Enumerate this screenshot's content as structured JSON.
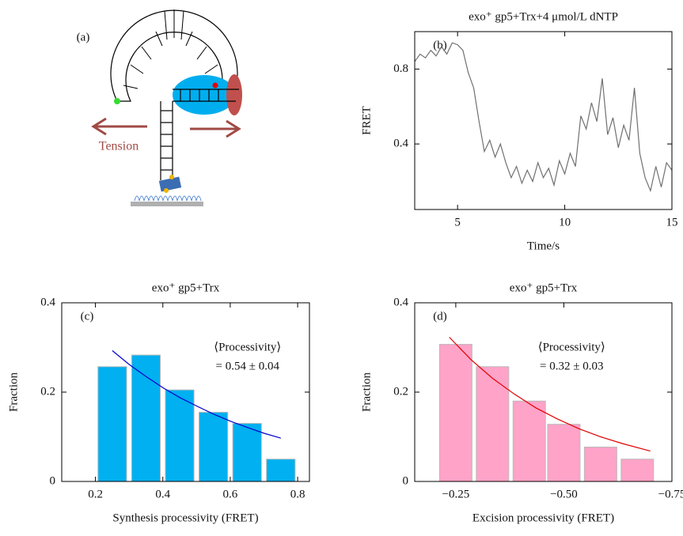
{
  "diagram": {
    "label": "(a)",
    "text": "Tension"
  },
  "chart_data": [
    {
      "type": "line",
      "panel": "(b)",
      "title": "exo⁺ gp5+Trx+4 μmol/L dNTP",
      "x_label": "Time/s",
      "y_label": "FRET",
      "color": "#707070",
      "x": [
        3,
        3.25,
        3.5,
        3.75,
        4,
        4.25,
        4.5,
        4.75,
        5,
        5.25,
        5.5,
        5.75,
        6,
        6.25,
        6.5,
        6.75,
        7,
        7.25,
        7.5,
        7.75,
        8,
        8.25,
        8.5,
        8.75,
        9,
        9.25,
        9.5,
        9.75,
        10,
        10.25,
        10.5,
        10.75,
        11,
        11.25,
        11.5,
        11.75,
        12,
        12.25,
        12.5,
        12.75,
        13,
        13.25,
        13.5,
        13.75,
        14,
        14.25,
        14.5,
        14.75,
        15
      ],
      "values": [
        0.84,
        0.88,
        0.86,
        0.9,
        0.87,
        0.92,
        0.88,
        0.94,
        0.93,
        0.9,
        0.78,
        0.7,
        0.52,
        0.36,
        0.42,
        0.33,
        0.4,
        0.3,
        0.22,
        0.28,
        0.19,
        0.26,
        0.2,
        0.3,
        0.22,
        0.27,
        0.18,
        0.31,
        0.24,
        0.35,
        0.28,
        0.55,
        0.48,
        0.62,
        0.52,
        0.75,
        0.45,
        0.54,
        0.38,
        0.5,
        0.42,
        0.7,
        0.35,
        0.22,
        0.15,
        0.28,
        0.17,
        0.3,
        0.26
      ],
      "xlim": [
        3,
        15
      ],
      "ylim": [
        0.05,
        1.0
      ],
      "xticks": [
        5,
        10,
        15
      ],
      "yticks": [
        0.4,
        0.8
      ]
    },
    {
      "type": "bar",
      "panel": "(c)",
      "title": "exo⁺ gp5+Trx",
      "x_label": "Synthesis processivity (FRET)",
      "y_label": "Fraction",
      "color": "#00b0f0",
      "x": [
        0.25,
        0.35,
        0.45,
        0.55,
        0.65,
        0.75
      ],
      "values": [
        0.257,
        0.283,
        0.205,
        0.155,
        0.13,
        0.05
      ],
      "bar_width": 0.085,
      "fit": {
        "color": "#0000cc",
        "x": [
          0.25,
          0.3,
          0.35,
          0.4,
          0.45,
          0.5,
          0.55,
          0.6,
          0.65,
          0.7,
          0.75
        ],
        "values": [
          0.293,
          0.262,
          0.235,
          0.21,
          0.188,
          0.169,
          0.151,
          0.135,
          0.121,
          0.108,
          0.097
        ]
      },
      "annotation": [
        "⟨Processivity⟩",
        "= 0.54 ± 0.04"
      ],
      "xlim": [
        0.1,
        0.835
      ],
      "ylim": [
        0,
        0.4
      ],
      "xticks": [
        0.2,
        0.4,
        0.6,
        0.8
      ],
      "yticks": [
        0,
        0.2,
        0.4
      ]
    },
    {
      "type": "bar",
      "panel": "(d)",
      "title": "exo⁺ gp5+Trx",
      "x_label": "Excision processivity (FRET)",
      "y_label": "Fraction",
      "color": "#ffa3c8",
      "x": [
        -0.25,
        -0.335,
        -0.42,
        -0.5,
        -0.585,
        -0.67
      ],
      "values": [
        0.307,
        0.257,
        0.18,
        0.128,
        0.077,
        0.05
      ],
      "bar_width": 0.075,
      "fit": {
        "color": "#e00000",
        "x": [
          -0.235,
          -0.285,
          -0.335,
          -0.385,
          -0.435,
          -0.485,
          -0.535,
          -0.585,
          -0.635,
          -0.7
        ],
        "values": [
          0.323,
          0.273,
          0.231,
          0.196,
          0.165,
          0.14,
          0.118,
          0.1,
          0.085,
          0.068
        ]
      },
      "annotation": [
        "⟨Processivity⟩",
        "= 0.32 ± 0.03"
      ],
      "xlim": [
        -0.155,
        -0.75
      ],
      "ylim": [
        0,
        0.4
      ],
      "xticks": [
        {
          "value": -0.25,
          "label": "−0.25"
        },
        {
          "value": -0.5,
          "label": "−0.50"
        },
        {
          "value": -0.75,
          "label": "−0.75"
        }
      ],
      "yticks": [
        0,
        0.2,
        0.4
      ]
    }
  ]
}
